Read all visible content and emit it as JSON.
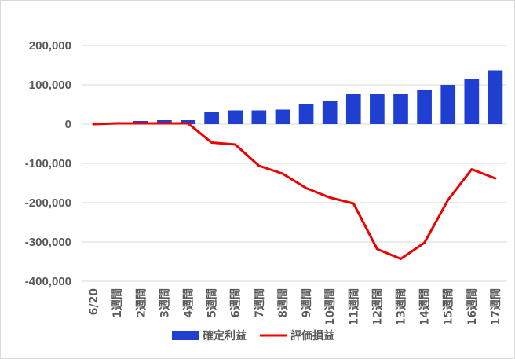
{
  "chart_data": {
    "type": "bar",
    "categories": [
      "6/20",
      "1週間",
      "2週間",
      "3週間",
      "4週間",
      "5週間",
      "6週間",
      "7週間",
      "8週間",
      "9週間",
      "10週間",
      "11週間",
      "12週間",
      "13週間",
      "14週間",
      "15週間",
      "16週間",
      "17週間"
    ],
    "series": [
      {
        "name": "確定利益",
        "type": "bar",
        "color": "#1f3fd1",
        "values": [
          0,
          2000,
          8000,
          10000,
          10000,
          30000,
          35000,
          35000,
          37000,
          52000,
          60000,
          76000,
          76000,
          76000,
          86000,
          100000,
          115000,
          137000
        ]
      },
      {
        "name": "評価損益",
        "type": "line",
        "color": "#ee0000",
        "values": [
          0,
          2000,
          2000,
          2000,
          2000,
          -47000,
          -52000,
          -106000,
          -126000,
          -163000,
          -187000,
          -202000,
          -318000,
          -343000,
          -302000,
          -193000,
          -115000,
          -138000
        ]
      }
    ],
    "yticks": [
      "200,000",
      "100,000",
      "0",
      "-100,000",
      "-200,000",
      "-300,000",
      "-400,000"
    ],
    "ylim": [
      -400000,
      200000
    ],
    "grid": true,
    "legend": "bottom"
  }
}
